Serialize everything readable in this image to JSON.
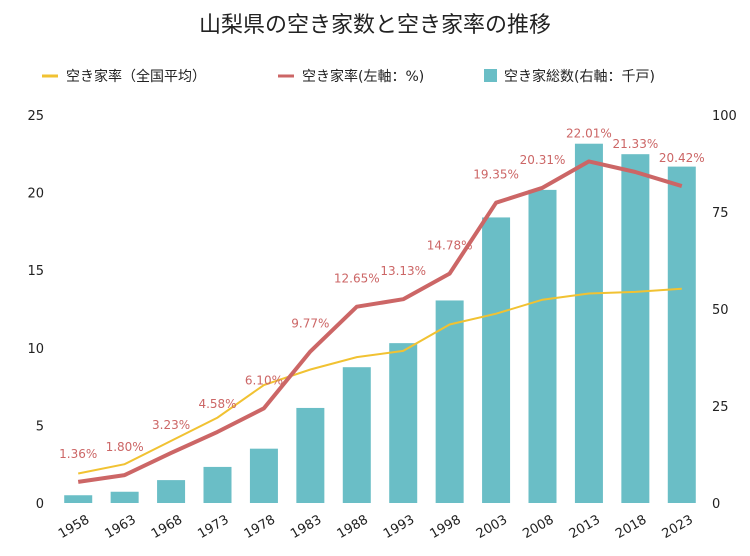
{
  "chart_data": {
    "type": "bar",
    "title": "山梨県の空き家数と空き家率の推移",
    "categories": [
      "1958",
      "1963",
      "1968",
      "1973",
      "1978",
      "1983",
      "1988",
      "1993",
      "1998",
      "2003",
      "2008",
      "2013",
      "2018",
      "2023"
    ],
    "series": [
      {
        "name": "空き家率（全国平均）",
        "type": "line",
        "axis": "left",
        "color": "#f1c232",
        "values": [
          1.9,
          2.5,
          4.0,
          5.5,
          7.6,
          8.6,
          9.4,
          9.8,
          11.5,
          12.2,
          13.1,
          13.5,
          13.6,
          13.8
        ]
      },
      {
        "name": "空き家率(左軸：%)",
        "type": "line",
        "axis": "left",
        "color": "#cc6666",
        "values": [
          1.36,
          1.8,
          3.23,
          4.58,
          6.1,
          9.77,
          12.65,
          13.13,
          14.78,
          19.35,
          20.31,
          22.01,
          21.33,
          20.42
        ],
        "labels": [
          "1.36%",
          "1.80%",
          "3.23%",
          "4.58%",
          "6.10%",
          "9.77%",
          "12.65%",
          "13.13%",
          "14.78%",
          "19.35%",
          "20.31%",
          "22.01%",
          "21.33%",
          "20.42%"
        ]
      },
      {
        "name": "空き家総数(右軸：千戸)",
        "type": "bar",
        "axis": "right",
        "color": "#6abec6",
        "values": [
          2.0,
          2.9,
          5.9,
          9.3,
          14.0,
          24.5,
          35.0,
          41.2,
          52.2,
          73.6,
          80.7,
          92.6,
          89.9,
          86.7
        ]
      }
    ],
    "y_left": {
      "min": 0,
      "max": 25,
      "ticks": [
        "0",
        "5",
        "10",
        "15",
        "20",
        "25"
      ]
    },
    "y_right": {
      "min": 0,
      "max": 100,
      "ticks": [
        "0",
        "25",
        "50",
        "75",
        "100"
      ]
    },
    "legend_position": "top",
    "grid": false
  }
}
